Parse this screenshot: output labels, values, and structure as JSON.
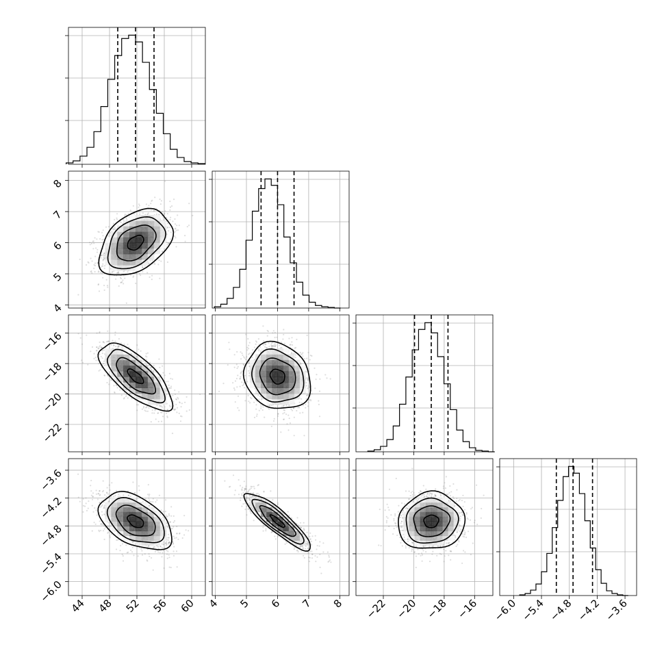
{
  "chart_data": {
    "type": "corner",
    "grid": true,
    "parameters": [
      {
        "mean": 51.8,
        "sd": 2.6,
        "range": [
          42,
          62
        ],
        "ticks": [
          44,
          48,
          52,
          56,
          60
        ],
        "tick_labels": [
          "44",
          "48",
          "52",
          "56",
          "60"
        ],
        "quantiles": [
          49.2,
          51.8,
          54.5
        ]
      },
      {
        "mean": 6.0,
        "sd": 0.52,
        "range": [
          3.9,
          8.3
        ],
        "ticks": [
          4,
          5,
          6,
          7,
          8
        ],
        "tick_labels": [
          "4",
          "5",
          "6",
          "7",
          "8"
        ],
        "quantiles": [
          5.47,
          6.0,
          6.53
        ]
      },
      {
        "mean": -18.85,
        "sd": 1.07,
        "range": [
          -23.8,
          -14.8
        ],
        "ticks": [
          -22,
          -20,
          -18,
          -16
        ],
        "tick_labels": [
          "−22",
          "−20",
          "−18",
          "−16"
        ],
        "quantiles": [
          -19.95,
          -18.85,
          -17.75
        ]
      },
      {
        "mean": -4.7,
        "sd": 0.3,
        "range": [
          -6.3,
          -3.35
        ],
        "ticks": [
          -6.0,
          -5.4,
          -4.8,
          -4.2,
          -3.6
        ],
        "tick_labels": [
          "−6.0",
          "−5.4",
          "−4.8",
          "−4.2",
          "−3.6"
        ],
        "quantiles": [
          -5.08,
          -4.72,
          -4.3
        ]
      }
    ],
    "correlations": [
      {
        "pair": [
          0,
          1
        ],
        "r": 0.4
      },
      {
        "pair": [
          0,
          2
        ],
        "r": -0.72
      },
      {
        "pair": [
          1,
          2
        ],
        "r": -0.15
      },
      {
        "pair": [
          0,
          3
        ],
        "r": -0.45
      },
      {
        "pair": [
          1,
          3
        ],
        "r": -0.88
      },
      {
        "pair": [
          2,
          3
        ],
        "r": 0.05
      }
    ],
    "diagonal_hist_peaks": [
      {
        "param": 0,
        "bins": 20,
        "counts": [
          2,
          5,
          12,
          25,
          48,
          85,
          125,
          160,
          185,
          190,
          180,
          150,
          110,
          75,
          45,
          22,
          10,
          4,
          2,
          1
        ]
      },
      {
        "param": 1,
        "bins": 20,
        "counts": [
          2,
          6,
          15,
          32,
          60,
          105,
          150,
          185,
          200,
          190,
          160,
          110,
          70,
          40,
          20,
          9,
          4,
          2,
          1,
          0
        ]
      },
      {
        "param": 2,
        "bins": 20,
        "counts": [
          1,
          3,
          8,
          18,
          38,
          70,
          110,
          150,
          180,
          190,
          175,
          140,
          100,
          62,
          32,
          15,
          6,
          2,
          1,
          0
        ]
      },
      {
        "param": 3,
        "bins": 20,
        "counts": [
          1,
          3,
          8,
          17,
          35,
          62,
          100,
          140,
          175,
          190,
          180,
          150,
          110,
          70,
          38,
          18,
          7,
          3,
          1,
          0
        ]
      }
    ],
    "contour_levels": 4,
    "density_shading": "grayscale"
  }
}
